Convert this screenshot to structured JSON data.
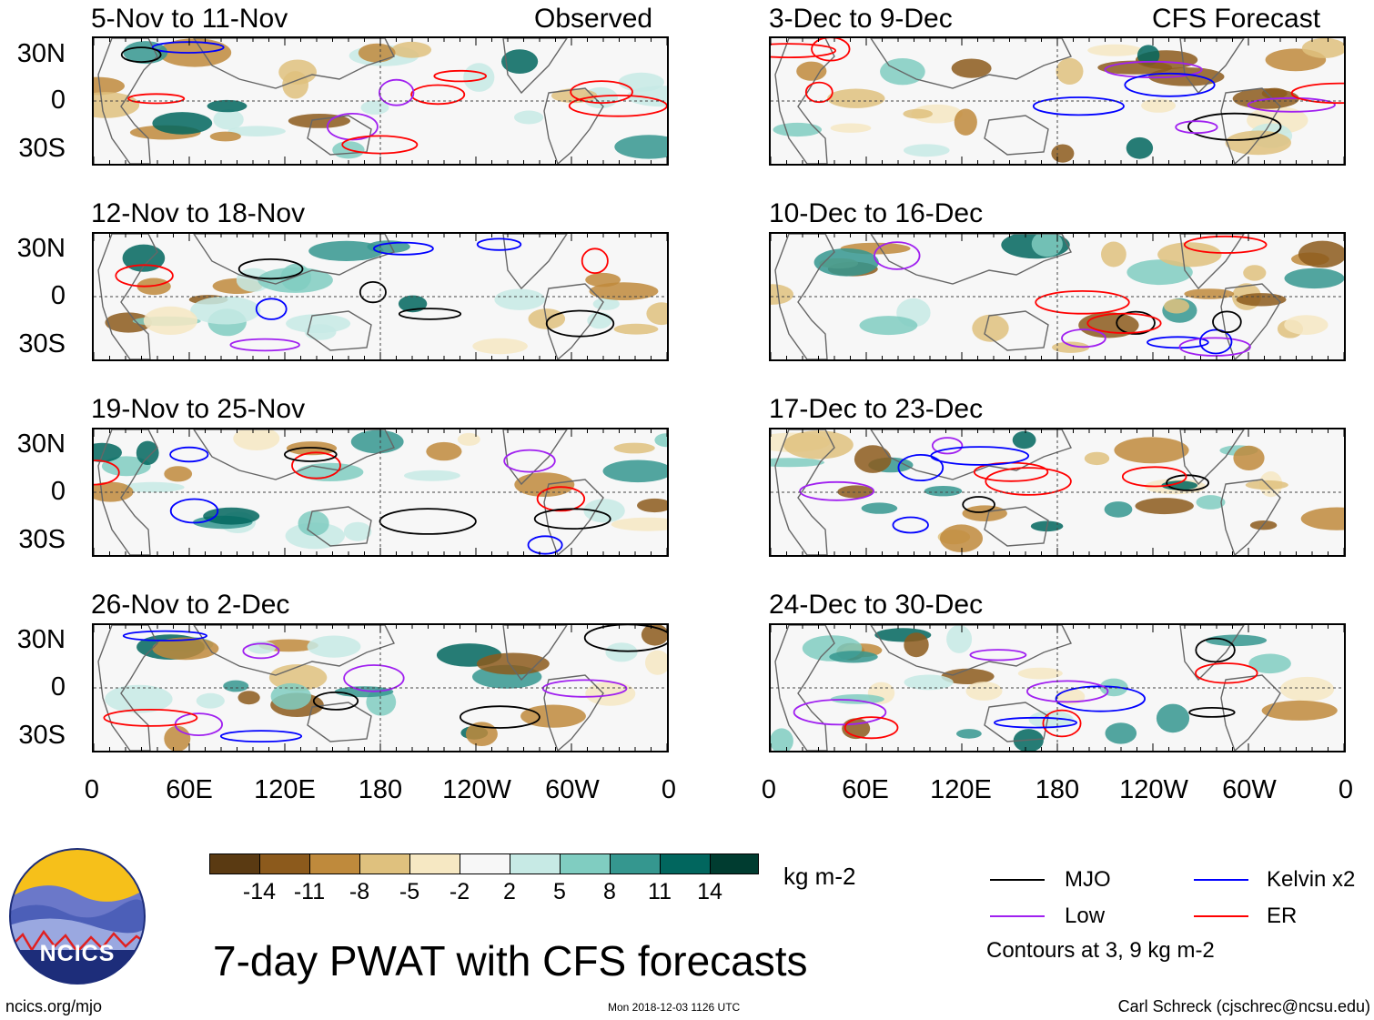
{
  "left_header": "Observed",
  "right_header": "CFS Forecast",
  "y_labels": [
    "30N",
    "0",
    "30S"
  ],
  "x_labels": [
    "0",
    "60E",
    "120E",
    "180",
    "120W",
    "60W",
    "0"
  ],
  "panels_left": [
    {
      "period": "5-Nov to 11-Nov"
    },
    {
      "period": "12-Nov to 18-Nov"
    },
    {
      "period": "19-Nov to 25-Nov"
    },
    {
      "period": "26-Nov to 2-Dec"
    }
  ],
  "panels_right": [
    {
      "period": "3-Dec to 9-Dec"
    },
    {
      "period": "10-Dec to 16-Dec"
    },
    {
      "period": "17-Dec to 23-Dec"
    },
    {
      "period": "24-Dec to 30-Dec"
    }
  ],
  "colorbar": {
    "ticks": [
      "-14",
      "-11",
      "-8",
      "-5",
      "-2",
      "2",
      "5",
      "8",
      "11",
      "14"
    ],
    "colors": [
      "#5a3a12",
      "#8c5a1c",
      "#bf8a3c",
      "#dfc17e",
      "#f6e8c3",
      "#f7f7f7",
      "#c7eae5",
      "#80cdc1",
      "#35978f",
      "#01665e",
      "#003c30"
    ],
    "units": "kg m-2"
  },
  "legend": {
    "items": [
      {
        "label": "MJO",
        "color": "#000000"
      },
      {
        "label": "Kelvin x2",
        "color": "#0000ff"
      },
      {
        "label": "Low",
        "color": "#a020f0"
      },
      {
        "label": "ER",
        "color": "#ff0000"
      }
    ],
    "note": "Contours at 3, 9 kg m-2"
  },
  "logo_text": "NCICS",
  "title": "7-day PWAT with CFS forecasts",
  "footer": {
    "url": "ncics.org/mjo",
    "timestamp": "Mon 2018-12-03 1126 UTC",
    "credit": "Carl Schreck (cjschrec@ncsu.edu)"
  }
}
